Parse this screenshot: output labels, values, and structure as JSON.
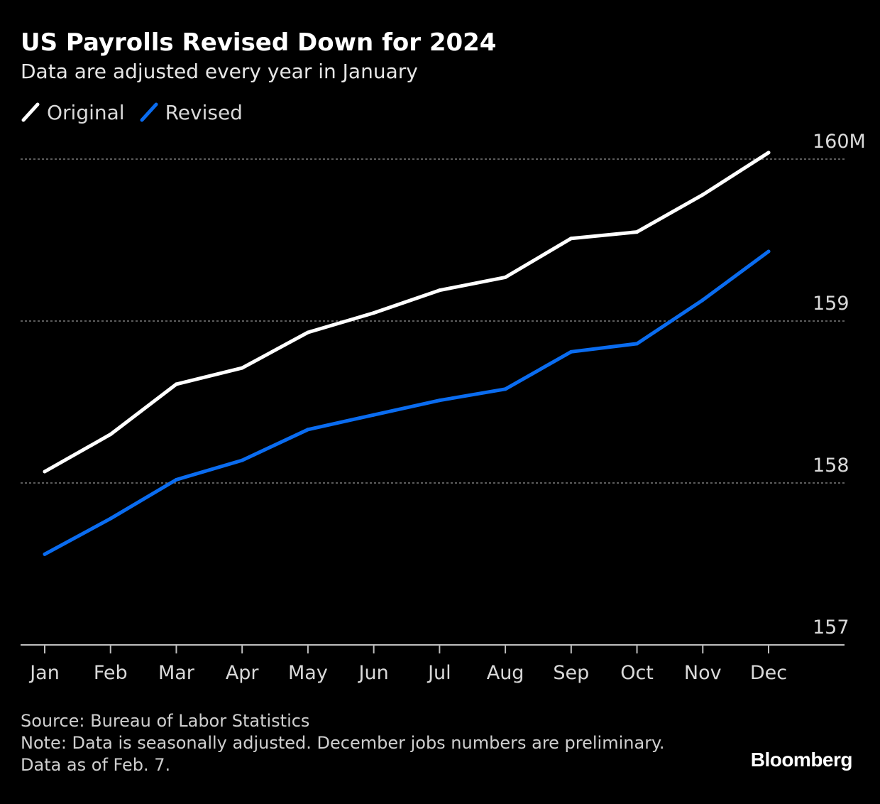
{
  "header": {
    "title": "US Payrolls Revised Down for 2024",
    "subtitle": "Data are adjusted every year in January"
  },
  "footer": {
    "source": "Source: Bureau of Labor Statistics",
    "note": "Note: Data is seasonally adjusted. December jobs numbers are preliminary.",
    "data_as_of": "Data as of Feb. 7.",
    "brand": "Bloomberg"
  },
  "colors": {
    "background": "#000000",
    "original": "#ffffff",
    "revised": "#0a6cf0",
    "grid": "#7a7a7a",
    "axis": "#bfbfbf",
    "tick_label": "#d9d9d9"
  },
  "chart_data": {
    "type": "line",
    "title": "US Payrolls Revised Down for 2024",
    "subtitle": "Data are adjusted every year in January",
    "categories": [
      "Jan",
      "Feb",
      "Mar",
      "Apr",
      "May",
      "Jun",
      "Jul",
      "Aug",
      "Sep",
      "Oct",
      "Nov",
      "Dec"
    ],
    "series": [
      {
        "name": "Original",
        "color": "#ffffff",
        "values": [
          158.07,
          158.3,
          158.61,
          158.71,
          158.93,
          159.05,
          159.19,
          159.27,
          159.51,
          159.55,
          159.78,
          160.04
        ]
      },
      {
        "name": "Revised",
        "color": "#0a6cf0",
        "values": [
          157.56,
          157.78,
          158.02,
          158.14,
          158.33,
          158.42,
          158.51,
          158.58,
          158.81,
          158.86,
          159.13,
          159.43
        ]
      }
    ],
    "y_ticks": [
      {
        "value": 160,
        "label": "160M"
      },
      {
        "value": 159,
        "label": "159"
      },
      {
        "value": 158,
        "label": "158"
      },
      {
        "value": 157,
        "label": "157"
      }
    ],
    "ylim": [
      157,
      160
    ],
    "grid": true,
    "y_axis_side": "right",
    "legend_position": "top-left"
  }
}
